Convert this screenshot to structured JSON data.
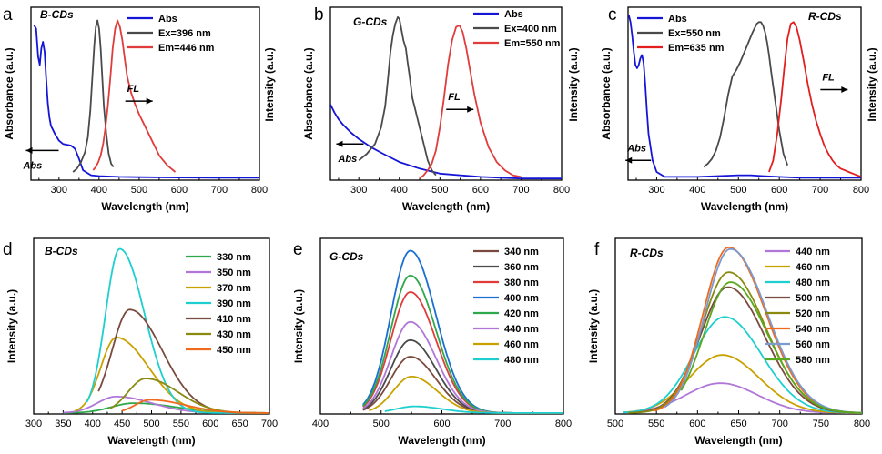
{
  "figure": {
    "description_labels": [
      "a",
      "b",
      "c",
      "d",
      "e",
      "f"
    ]
  },
  "chart_data": [
    {
      "panel": "a",
      "type": "line",
      "sample": "B-CDs",
      "xlabel": "Wavelength (nm)",
      "ylabel_left": "Absorbance (a.u.)",
      "ylabel_right": "Intensity (a.u.)",
      "xlim": [
        230,
        800
      ],
      "ylim": [
        0,
        1.05
      ],
      "xticks": [
        300,
        400,
        500,
        600,
        700,
        800
      ],
      "legend": "top-right",
      "annotations": [
        {
          "text": "Abs",
          "arrow": "left",
          "x": 272,
          "y": 0.18
        },
        {
          "text": "FL",
          "arrow": "right",
          "x": 470,
          "y": 0.48
        }
      ],
      "series": [
        {
          "name": "Abs",
          "color": "#1515d8",
          "x": [
            238,
            243,
            248,
            252,
            256,
            260,
            264,
            268,
            272,
            276,
            280,
            290,
            300,
            310,
            320,
            330,
            340,
            350,
            360,
            380,
            400,
            450,
            500,
            600,
            700,
            800
          ],
          "y": [
            0.94,
            0.92,
            0.75,
            0.7,
            0.8,
            0.84,
            0.78,
            0.62,
            0.47,
            0.38,
            0.33,
            0.28,
            0.24,
            0.22,
            0.215,
            0.21,
            0.19,
            0.13,
            0.06,
            0.03,
            0.025,
            0.02,
            0.018,
            0.016,
            0.015,
            0.015
          ]
        },
        {
          "name": "Ex=396 nm",
          "color": "#4a4a4a",
          "x": [
            335,
            345,
            355,
            365,
            372,
            378,
            383,
            388,
            392,
            396,
            400,
            404,
            408,
            412,
            418,
            424,
            430,
            436
          ],
          "y": [
            0.05,
            0.07,
            0.11,
            0.17,
            0.26,
            0.42,
            0.62,
            0.82,
            0.93,
            0.97,
            0.92,
            0.8,
            0.62,
            0.45,
            0.28,
            0.16,
            0.1,
            0.08
          ]
        },
        {
          "name": "Em=446 nm",
          "color": "#e03c3c",
          "x": [
            385,
            392,
            398,
            404,
            410,
            416,
            422,
            428,
            434,
            440,
            446,
            452,
            458,
            464,
            470,
            480,
            490,
            500,
            510,
            520,
            530,
            540,
            550,
            560,
            570,
            580,
            590
          ],
          "y": [
            0.06,
            0.08,
            0.11,
            0.15,
            0.22,
            0.32,
            0.45,
            0.62,
            0.8,
            0.92,
            0.97,
            0.93,
            0.85,
            0.74,
            0.63,
            0.53,
            0.46,
            0.4,
            0.35,
            0.3,
            0.25,
            0.2,
            0.15,
            0.12,
            0.09,
            0.07,
            0.05
          ]
        }
      ]
    },
    {
      "panel": "b",
      "type": "line",
      "sample": "G-CDs",
      "xlabel": "Wavelength (nm)",
      "ylabel_left": "Absorbance (a.u.)",
      "ylabel_right": "Intensity (a.u.)",
      "xlim": [
        230,
        800
      ],
      "ylim": [
        0,
        1.05
      ],
      "xticks": [
        300,
        400,
        500,
        600,
        700,
        800
      ],
      "legend": "top-right",
      "annotations": [
        {
          "text": "Abs",
          "arrow": "left",
          "x": 240,
          "y": 0.22
        },
        {
          "text": "FL",
          "arrow": "right",
          "x": 520,
          "y": 0.43
        }
      ],
      "series": [
        {
          "name": "Abs",
          "color": "#1515d8",
          "x": [
            230,
            240,
            250,
            260,
            280,
            300,
            330,
            360,
            400,
            450,
            500,
            550,
            600,
            650,
            700,
            750,
            800
          ],
          "y": [
            0.46,
            0.41,
            0.37,
            0.34,
            0.29,
            0.25,
            0.2,
            0.16,
            0.11,
            0.07,
            0.04,
            0.03,
            0.02,
            0.015,
            0.01,
            0.01,
            0.01
          ]
        },
        {
          "name": "Ex=400 nm",
          "color": "#4a4a4a",
          "x": [
            300,
            320,
            340,
            355,
            365,
            372,
            378,
            384,
            390,
            396,
            400,
            404,
            410,
            416,
            420,
            426,
            432,
            440,
            450,
            460,
            470,
            480,
            490
          ],
          "y": [
            0.12,
            0.16,
            0.22,
            0.32,
            0.45,
            0.62,
            0.78,
            0.88,
            0.95,
            0.99,
            0.98,
            0.93,
            0.85,
            0.8,
            0.72,
            0.62,
            0.5,
            0.42,
            0.32,
            0.22,
            0.12,
            0.06,
            0.03
          ]
        },
        {
          "name": "Em=550 nm",
          "color": "#e03c3c",
          "x": [
            450,
            460,
            470,
            480,
            490,
            500,
            510,
            520,
            530,
            540,
            548,
            556,
            565,
            575,
            585,
            600,
            620,
            640,
            660,
            680,
            700
          ],
          "y": [
            0.01,
            0.03,
            0.06,
            0.1,
            0.18,
            0.32,
            0.5,
            0.7,
            0.85,
            0.93,
            0.94,
            0.9,
            0.8,
            0.66,
            0.52,
            0.35,
            0.2,
            0.11,
            0.06,
            0.03,
            0.02
          ]
        }
      ]
    },
    {
      "panel": "c",
      "type": "line",
      "sample": "R-CDs",
      "xlabel": "Wavelength (nm)",
      "ylabel_left": "Absorbance (a.u.)",
      "ylabel_right": "Intensity (a.u.)",
      "xlim": [
        230,
        800
      ],
      "ylim": [
        0,
        1.05
      ],
      "xticks": [
        300,
        400,
        500,
        600,
        700,
        800
      ],
      "legend": "top-left",
      "annotations": [
        {
          "text": "Abs",
          "arrow": "left",
          "x": 255,
          "y": 0.12
        },
        {
          "text": "FL",
          "arrow": "right",
          "x": 705,
          "y": 0.55
        }
      ],
      "series": [
        {
          "name": "Abs",
          "color": "#1515d8",
          "x": [
            232,
            236,
            240,
            244,
            248,
            252,
            256,
            260,
            264,
            268,
            272,
            276,
            280,
            290,
            300,
            320,
            350,
            400,
            450,
            500,
            530,
            560,
            600,
            650,
            700,
            800
          ],
          "y": [
            1.0,
            0.96,
            0.88,
            0.78,
            0.7,
            0.68,
            0.7,
            0.74,
            0.76,
            0.71,
            0.58,
            0.42,
            0.28,
            0.12,
            0.05,
            0.02,
            0.02,
            0.02,
            0.025,
            0.03,
            0.03,
            0.025,
            0.02,
            0.015,
            0.015,
            0.015
          ]
        },
        {
          "name": "Ex=550 nm",
          "color": "#4a4a4a",
          "x": [
            415,
            425,
            435,
            445,
            455,
            465,
            475,
            485,
            495,
            505,
            515,
            525,
            535,
            545,
            550,
            555,
            560,
            565,
            570,
            575,
            580,
            590,
            600,
            610,
            620
          ],
          "y": [
            0.08,
            0.1,
            0.13,
            0.18,
            0.26,
            0.38,
            0.52,
            0.63,
            0.67,
            0.72,
            0.78,
            0.84,
            0.9,
            0.95,
            0.96,
            0.96,
            0.94,
            0.9,
            0.84,
            0.76,
            0.66,
            0.48,
            0.3,
            0.16,
            0.09
          ]
        },
        {
          "name": "Em=635 nm",
          "color": "#e31e1e",
          "x": [
            575,
            585,
            595,
            605,
            612,
            620,
            628,
            635,
            642,
            650,
            660,
            670,
            680,
            690,
            700,
            710,
            720,
            730,
            740,
            750,
            760,
            770,
            780,
            790,
            800
          ],
          "y": [
            0.05,
            0.12,
            0.28,
            0.5,
            0.68,
            0.86,
            0.95,
            0.96,
            0.93,
            0.85,
            0.72,
            0.58,
            0.46,
            0.36,
            0.28,
            0.21,
            0.16,
            0.12,
            0.09,
            0.07,
            0.06,
            0.05,
            0.04,
            0.03,
            0.02
          ]
        }
      ]
    },
    {
      "panel": "d",
      "type": "line",
      "sample": "B-CDs",
      "xlabel": "Wavelength (nm)",
      "ylabel_left": "Intensity (a.u.)",
      "xlim": [
        300,
        700
      ],
      "ylim": [
        0,
        1.07
      ],
      "xticks": [
        300,
        350,
        400,
        450,
        500,
        550,
        600,
        650,
        700
      ],
      "legend": "top-right",
      "series": [
        {
          "name": "330 nm",
          "color": "#2ea84a",
          "peak": 470,
          "amp": 0.06,
          "wl": 38,
          "wr": 70,
          "start": 350
        },
        {
          "name": "350 nm",
          "color": "#b077d9",
          "peak": 440,
          "amp": 0.1,
          "wl": 32,
          "wr": 60,
          "start": 350
        },
        {
          "name": "370 nm",
          "color": "#c9a100",
          "peak": 440,
          "amp": 0.46,
          "wl": 26,
          "wr": 55,
          "start": 370
        },
        {
          "name": "390 nm",
          "color": "#1fcfcf",
          "peak": 446,
          "amp": 1.0,
          "wl": 24,
          "wr": 42,
          "start": 390
        },
        {
          "name": "410 nm",
          "color": "#7a4a3e",
          "peak": 463,
          "amp": 0.63,
          "wl": 30,
          "wr": 55,
          "start": 410
        },
        {
          "name": "430 nm",
          "color": "#8a8a10",
          "peak": 490,
          "amp": 0.21,
          "wl": 30,
          "wr": 55,
          "start": 430
        },
        {
          "name": "450 nm",
          "color": "#f06a1e",
          "peak": 497,
          "amp": 0.08,
          "wl": 25,
          "wr": 60,
          "start": 450
        }
      ]
    },
    {
      "panel": "e",
      "type": "line",
      "sample": "G-CDs",
      "xlabel": "Wavelength (nm)",
      "ylabel_left": "Intensity (a.u.)",
      "xlim": [
        400,
        800
      ],
      "ylim": [
        0,
        1.06
      ],
      "xticks": [
        400,
        500,
        600,
        700,
        800
      ],
      "legend": "top-right",
      "series": [
        {
          "name": "340 nm",
          "color": "#7a4a3e",
          "peak": 548,
          "amp": 0.34,
          "wl": 32,
          "wr": 42,
          "start": 470
        },
        {
          "name": "360 nm",
          "color": "#4a4a4a",
          "peak": 548,
          "amp": 0.44,
          "wl": 32,
          "wr": 42,
          "start": 470
        },
        {
          "name": "380 nm",
          "color": "#e03c3c",
          "peak": 548,
          "amp": 0.73,
          "wl": 32,
          "wr": 42,
          "start": 470
        },
        {
          "name": "400 nm",
          "color": "#1a6fd0",
          "peak": 548,
          "amp": 0.98,
          "wl": 32,
          "wr": 42,
          "start": 470
        },
        {
          "name": "420 nm",
          "color": "#2ea84a",
          "peak": 548,
          "amp": 0.83,
          "wl": 32,
          "wr": 42,
          "start": 470
        },
        {
          "name": "440 nm",
          "color": "#b077d9",
          "peak": 548,
          "amp": 0.55,
          "wl": 32,
          "wr": 42,
          "start": 470
        },
        {
          "name": "460 nm",
          "color": "#c9a100",
          "peak": 550,
          "amp": 0.22,
          "wl": 30,
          "wr": 42,
          "start": 480
        },
        {
          "name": "480 nm",
          "color": "#1fcfcf",
          "peak": 555,
          "amp": 0.04,
          "wl": 30,
          "wr": 45,
          "start": 505
        }
      ]
    },
    {
      "panel": "f",
      "type": "line",
      "sample": "R-CDs",
      "xlabel": "Wavelength (nm)",
      "ylabel_left": "Intensity (a.u.)",
      "xlim": [
        500,
        800
      ],
      "ylim": [
        0,
        1.06
      ],
      "xticks": [
        500,
        550,
        600,
        650,
        700,
        750,
        800
      ],
      "legend": "top-right",
      "series": [
        {
          "name": "440 nm",
          "color": "#b077d9",
          "peak": 628,
          "amp": 0.18,
          "wl": 42,
          "wr": 45,
          "start": 510
        },
        {
          "name": "460 nm",
          "color": "#c9a100",
          "peak": 630,
          "amp": 0.35,
          "wl": 40,
          "wr": 45,
          "start": 510
        },
        {
          "name": "480 nm",
          "color": "#1fcfcf",
          "peak": 633,
          "amp": 0.58,
          "wl": 38,
          "wr": 45,
          "start": 510
        },
        {
          "name": "500 nm",
          "color": "#7a4a3e",
          "peak": 637,
          "amp": 0.76,
          "wl": 34,
          "wr": 45,
          "start": 515
        },
        {
          "name": "520 nm",
          "color": "#8a8a10",
          "peak": 638,
          "amp": 0.85,
          "wl": 33,
          "wr": 45,
          "start": 515
        },
        {
          "name": "540 nm",
          "color": "#f06a1e",
          "peak": 638,
          "amp": 1.0,
          "wl": 31,
          "wr": 45,
          "start": 545
        },
        {
          "name": "560 nm",
          "color": "#7a9ad0",
          "peak": 640,
          "amp": 0.99,
          "wl": 31,
          "wr": 45,
          "start": 560
        },
        {
          "name": "580 nm",
          "color": "#5aa81e",
          "peak": 640,
          "amp": 0.79,
          "wl": 32,
          "wr": 45,
          "start": 580
        }
      ]
    }
  ]
}
